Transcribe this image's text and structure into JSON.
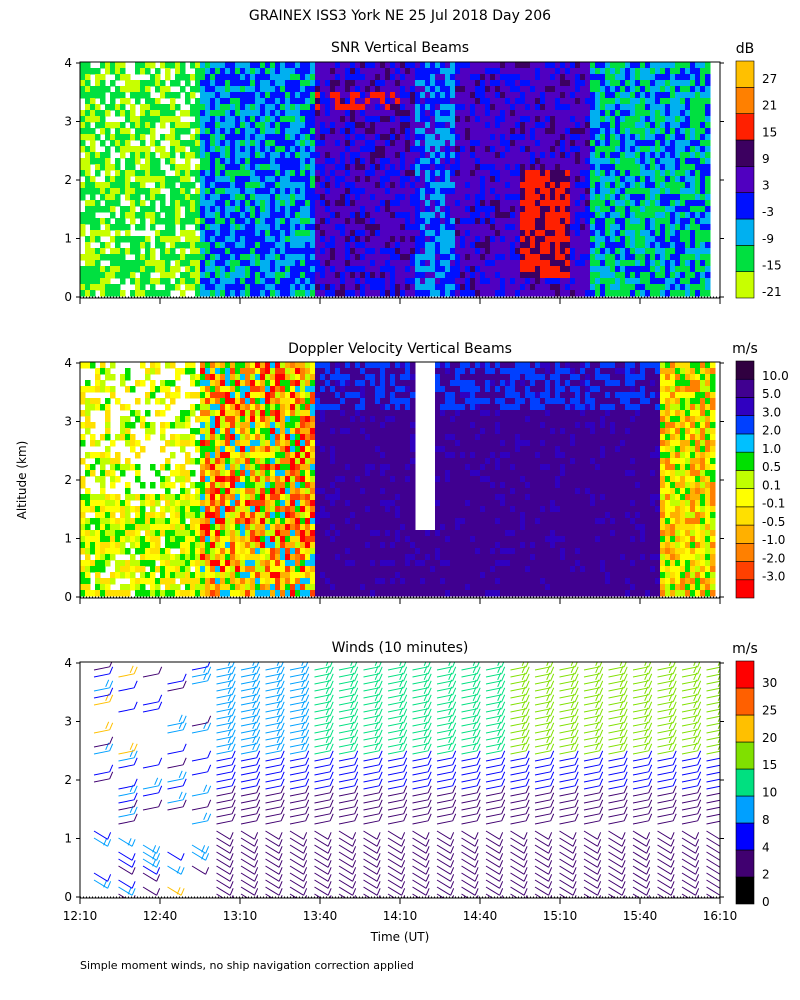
{
  "title": "GRAINEX ISS3 York NE  25 Jul 2018 Day 206",
  "footnote": "Simple moment winds, no ship navigation correction applied",
  "chart_data": [
    {
      "type": "heatmap",
      "title": "SNR Vertical Beams",
      "xlabel": "Time (UT)",
      "ylabel": "Altitude (km)",
      "ylim": [
        0,
        4
      ],
      "yticks": [
        "0",
        "1",
        "2",
        "3",
        "4"
      ],
      "xticks": [
        "12:10",
        "12:40",
        "13:10",
        "13:40",
        "14:10",
        "14:40",
        "15:10",
        "15:40",
        "16:10"
      ],
      "colorbar": {
        "unit": "dB",
        "labels": [
          "27",
          "21",
          "15",
          "9",
          "3",
          "-3",
          "-9",
          "-15",
          "-21"
        ],
        "colors": [
          "#c8ff00",
          "#00e040",
          "#00b0f0",
          "#0010ff",
          "#5000c0",
          "#3c0060",
          "#ff2000",
          "#ff8000",
          "#ffc000"
        ]
      },
      "description_of_field": "low SNR (green/blue) at 12:10-12:40, blue/purple from 12:50, very high SNR (15-21 dB red) near 15:00 between 0.5-2 km"
    },
    {
      "type": "heatmap",
      "title": "Doppler Velocity Vertical Beams",
      "xlabel": "Time (UT)",
      "ylabel": "Altitude (km)",
      "ylim": [
        0,
        4
      ],
      "yticks": [
        "0",
        "1",
        "2",
        "3",
        "4"
      ],
      "xticks": [
        "12:10",
        "12:40",
        "13:10",
        "13:40",
        "14:10",
        "14:40",
        "15:10",
        "15:40",
        "16:10"
      ],
      "colorbar": {
        "unit": "m/s",
        "labels": [
          "10.0",
          "5.0",
          "3.0",
          "2.0",
          "1.0",
          "0.5",
          "0.1",
          "-0.1",
          "-0.5",
          "-1.0",
          "-2.0",
          "-3.0"
        ],
        "colors": [
          "#ff0000",
          "#ff4000",
          "#ff8000",
          "#ffb000",
          "#ffe000",
          "#ffff00",
          "#c0ff00",
          "#00e000",
          "#00c0ff",
          "#0040ff",
          "#3000c0",
          "#400090",
          "#300040"
        ]
      }
    },
    {
      "type": "wind_barbs",
      "title": "Winds (10 minutes)",
      "xlabel": "Time (UT)",
      "ylabel": "Altitude (km)",
      "ylim": [
        0,
        4
      ],
      "yticks": [
        "0",
        "1",
        "2",
        "3",
        "4"
      ],
      "xticks": [
        "12:10",
        "12:40",
        "13:10",
        "13:40",
        "14:10",
        "14:40",
        "15:10",
        "15:40",
        "16:10"
      ],
      "colorbar": {
        "unit": "m/s",
        "labels": [
          "30",
          "25",
          "20",
          "15",
          "10",
          "8",
          "4",
          "2",
          "0"
        ],
        "colors": [
          "#000000",
          "#400070",
          "#0000ff",
          "#00a0ff",
          "#00e080",
          "#80e000",
          "#ffc000",
          "#ff6000",
          "#ff0000"
        ]
      }
    }
  ]
}
